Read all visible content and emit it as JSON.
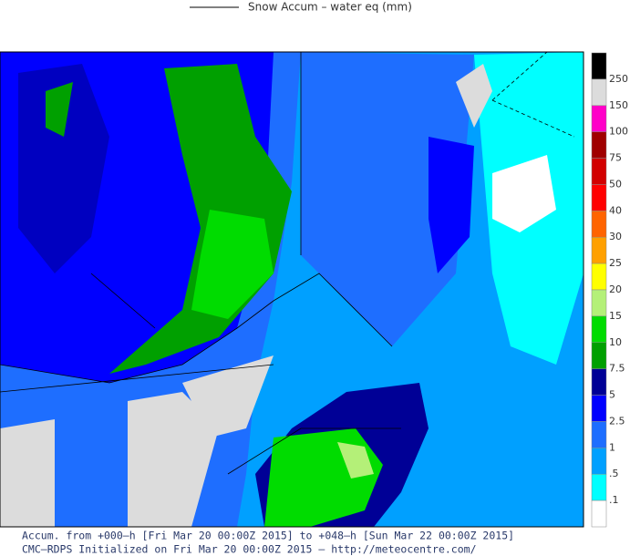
{
  "legend_title": "Snow Accum – water eq (mm)",
  "colorbar": {
    "labels": [
      "250",
      "150",
      "100",
      "75",
      "50",
      "40",
      "30",
      "25",
      "20",
      "15",
      "10",
      "7.5",
      "5",
      "2.5",
      "1",
      ".5",
      ".1"
    ],
    "colors": [
      "#000000",
      "#dcdcdc",
      "#ff00c8",
      "#a00000",
      "#d20000",
      "#ff0000",
      "#ff6400",
      "#ffa000",
      "#ffff00",
      "#b4f078",
      "#00dc00",
      "#00a000",
      "#000096",
      "#0000ff",
      "#1e6eff",
      "#00a0ff",
      "#00ffff",
      "#ffffff"
    ]
  },
  "footer": {
    "lines": [
      "Accum. from +000–h [Fri Mar 20 00:00Z 2015] to +048–h [Sun Mar 22 00:00Z 2015]",
      "CMC–RDPS Initialized on Fri Mar 20 00:00Z 2015 – http://meteocentre.com/"
    ]
  }
}
